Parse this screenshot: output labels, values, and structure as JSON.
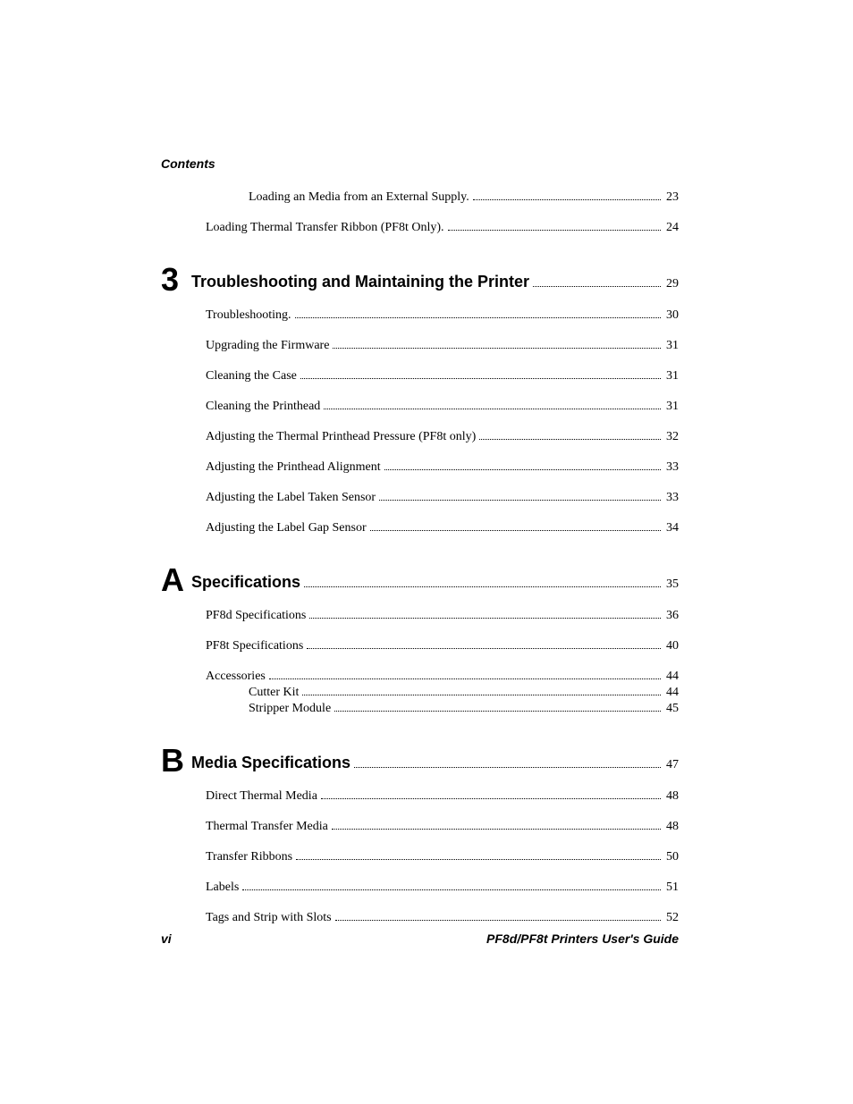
{
  "header": "Contents",
  "intro_entries": [
    {
      "title": "Loading an Media from an External Supply.",
      "page": "23",
      "indent": 2
    },
    {
      "title": "Loading Thermal Transfer Ribbon (PF8t Only).",
      "page": "24",
      "indent": 1
    }
  ],
  "chapters": [
    {
      "num": "3",
      "title": "Troubleshooting and Maintaining the Printer",
      "page": "29",
      "entries": [
        {
          "title": "Troubleshooting.",
          "page": "30",
          "indent": 1
        },
        {
          "title": "Upgrading the Firmware",
          "page": "31",
          "indent": 1
        },
        {
          "title": "Cleaning the Case",
          "page": "31",
          "indent": 1
        },
        {
          "title": "Cleaning the Printhead",
          "page": "31",
          "indent": 1
        },
        {
          "title": "Adjusting the Thermal Printhead Pressure (PF8t only)",
          "page": "32",
          "indent": 1
        },
        {
          "title": "Adjusting the Printhead Alignment",
          "page": "33",
          "indent": 1
        },
        {
          "title": "Adjusting the Label Taken Sensor",
          "page": "33",
          "indent": 1
        },
        {
          "title": "Adjusting the Label Gap Sensor",
          "page": "34",
          "indent": 1
        }
      ]
    },
    {
      "num": "A",
      "title": "Specifications",
      "page": "35",
      "entries": [
        {
          "title": "PF8d Specifications",
          "page": "36",
          "indent": 1
        },
        {
          "title": "PF8t Specifications",
          "page": "40",
          "indent": 1
        },
        {
          "title": "Accessories",
          "page": "44",
          "indent": 1
        },
        {
          "title": "Cutter Kit",
          "page": "44",
          "indent": 2,
          "tight": true
        },
        {
          "title": "Stripper Module",
          "page": "45",
          "indent": 2,
          "tight": true
        }
      ]
    },
    {
      "num": "B",
      "title": "Media Specifications",
      "page": "47",
      "entries": [
        {
          "title": "Direct Thermal Media",
          "page": "48",
          "indent": 1
        },
        {
          "title": "Thermal Transfer Media",
          "page": "48",
          "indent": 1
        },
        {
          "title": "Transfer Ribbons",
          "page": "50",
          "indent": 1
        },
        {
          "title": "Labels",
          "page": "51",
          "indent": 1
        },
        {
          "title": "Tags and Strip with Slots",
          "page": "52",
          "indent": 1
        }
      ]
    }
  ],
  "footer": {
    "left": "vi",
    "right": "PF8d/PF8t Printers User's Guide"
  }
}
